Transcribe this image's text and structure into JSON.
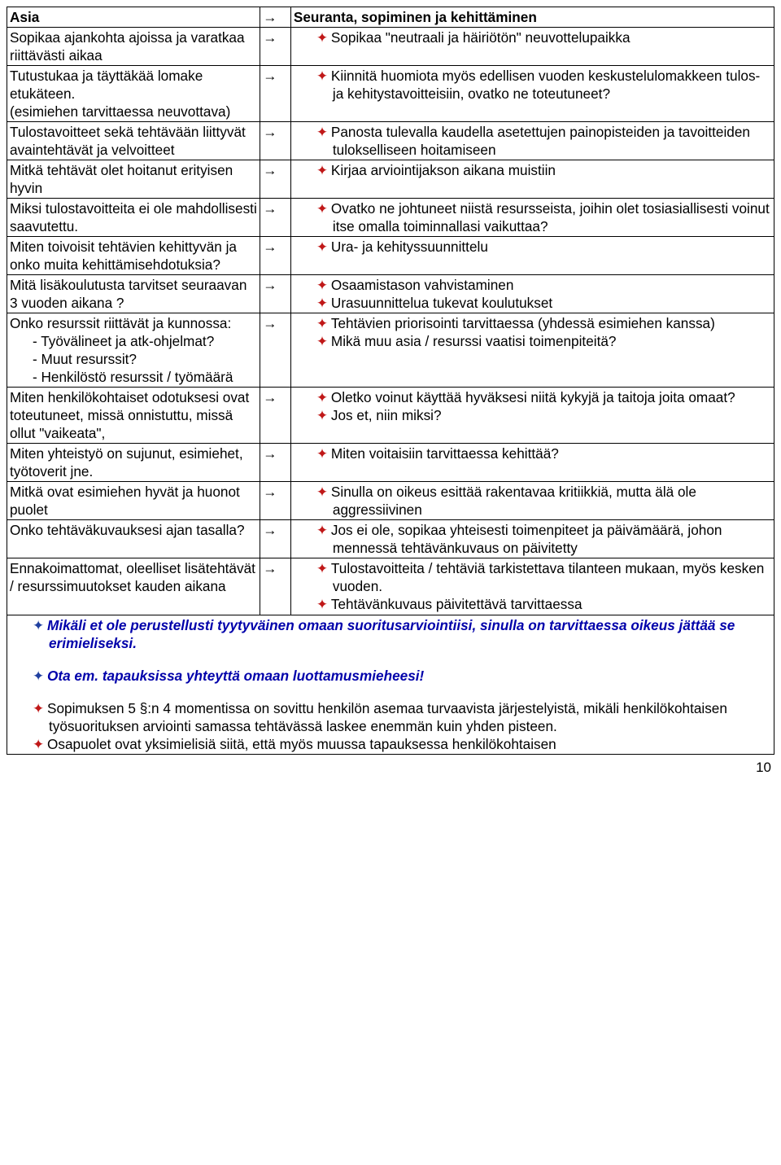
{
  "header": {
    "left": "Asia",
    "right": "Seuranta, sopiminen ja kehittäminen"
  },
  "arrow": "→",
  "bullet_colors": {
    "red": "#c01818",
    "blue": "#2040a0"
  },
  "rows": [
    {
      "left": "Sopikaa ajankohta ajoissa ja varatkaa riittävästi aikaa",
      "right": [
        {
          "c": "red",
          "t": "Sopikaa \"neutraali ja häiriötön\" neuvottelupaikka"
        }
      ]
    },
    {
      "left": "Tutustukaa ja täyttäkää lomake etukäteen.\n(esimiehen tarvittaessa neuvottava)",
      "right": [
        {
          "c": "red",
          "t": "Kiinnitä huomiota myös edellisen vuoden keskustelulomakkeen tulos- ja kehitystavoitteisiin, ovatko ne toteutuneet?"
        }
      ]
    },
    {
      "left": "Tulostavoitteet sekä tehtävään liittyvät avaintehtävät ja velvoitteet",
      "right": [
        {
          "c": "red",
          "t": "Panosta tulevalla kaudella asetettujen painopisteiden ja tavoitteiden tulokselliseen hoitamiseen"
        }
      ]
    },
    {
      "left": "Mitkä tehtävät olet hoitanut erityisen hyvin",
      "right": [
        {
          "c": "red",
          "t": "Kirjaa arviointijakson aikana muistiin"
        }
      ]
    },
    {
      "left": "Miksi tulostavoitteita ei ole mahdollisesti saavutettu.",
      "right": [
        {
          "c": "red",
          "t": "Ovatko ne johtuneet niistä resursseista, joihin olet tosiasiallisesti voinut itse omalla toiminnallasi vaikuttaa?"
        }
      ]
    },
    {
      "left": "Miten toivoisit tehtävien kehittyvän ja onko muita kehittämisehdotuksia?",
      "right": [
        {
          "c": "red",
          "t": "Ura- ja kehityssuunnittelu"
        }
      ]
    },
    {
      "left": "Mitä lisäkoulutusta tarvitset seuraavan 3 vuoden aikana ?",
      "right": [
        {
          "c": "red",
          "t": "Osaamistason vahvistaminen"
        },
        {
          "c": "red",
          "t": "Urasuunnittelua tukevat koulutukset"
        }
      ]
    },
    {
      "left": "Onko resurssit riittävät ja kunnossa:",
      "sub": [
        "Työvälineet ja atk-ohjelmat?",
        "Muut resurssit?",
        "Henkilöstö resurssit / työmäärä"
      ],
      "right": [
        {
          "c": "red",
          "t": "Tehtävien priorisointi tarvittaessa (yhdessä esimiehen kanssa)"
        },
        {
          "c": "red",
          "t": "Mikä muu asia / resurssi vaatisi toimenpiteitä?"
        }
      ]
    },
    {
      "left": "Miten henkilökohtaiset odotuksesi ovat toteutuneet, missä onnistuttu, missä ollut \"vaikeata\",",
      "right": [
        {
          "c": "red",
          "t": "Oletko voinut käyttää hyväksesi niitä kykyjä ja taitoja joita omaat?"
        },
        {
          "c": "red",
          "t": "Jos et, niin miksi?"
        }
      ]
    },
    {
      "left": "Miten yhteistyö on sujunut, esimiehet, työtoverit jne.",
      "right": [
        {
          "c": "red",
          "t": "Miten voitaisiin tarvittaessa kehittää?"
        }
      ]
    },
    {
      "left": "Mitkä ovat esimiehen hyvät ja huonot puolet",
      "right": [
        {
          "c": "red",
          "t": "Sinulla on oikeus esittää rakentavaa kritiikkiä, mutta älä ole aggressiivinen"
        }
      ]
    },
    {
      "left": "Onko tehtäväkuvauksesi ajan tasalla?",
      "right": [
        {
          "c": "red",
          "t": "Jos ei ole, sopikaa yhteisesti toimenpiteet ja päivämäärä, johon mennessä tehtävänkuvaus on päivitetty"
        }
      ]
    },
    {
      "left": "Ennakoimattomat, oleelliset lisätehtävät / resurssimuutokset kauden aikana",
      "right": [
        {
          "c": "red",
          "t": "Tulostavoitteita / tehtäviä tarkistettava tilanteen mukaan, myös kesken vuoden."
        },
        {
          "c": "red",
          "t": "Tehtävänkuvaus päivitettävä tarvittaessa"
        }
      ]
    }
  ],
  "footer": {
    "blue1": "Mikäli et ole perustellusti tyytyväinen omaan suoritusarviointiisi, sinulla on tarvittaessa oikeus jättää se erimieliseksi.",
    "blue2": "Ota em. tapauksissa yhteyttä omaan luottamusmieheesi!",
    "p1": "Sopimuksen 5 §:n 4 momentissa on sovittu henkilön asemaa turvaavista järjestelyistä, mikäli henkilökohtaisen työsuorituksen arviointi samassa tehtävässä laskee enemmän kuin yhden pisteen.",
    "p2": "Osapuolet ovat yksimielisiä siitä, että myös muussa tapauksessa henkilökohtaisen"
  },
  "page": "10"
}
